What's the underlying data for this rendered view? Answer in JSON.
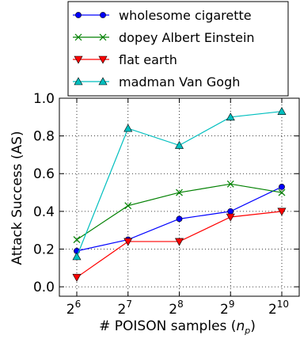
{
  "chart_data": {
    "type": "line",
    "title": "",
    "xlabel": "# POISON samples (",
    "xlabel_var": "n",
    "xlabel_sub": "p",
    "xlabel_close": ")",
    "ylabel": "Attack Success (AS)",
    "x_tick_base": "2",
    "x_exponents": [
      "6",
      "7",
      "8",
      "9",
      "10"
    ],
    "x": [
      64,
      128,
      256,
      512,
      1024
    ],
    "x_scale": "log2",
    "ylim": [
      -0.05,
      1.0
    ],
    "y_ticks": [
      "0.0",
      "0.2",
      "0.4",
      "0.6",
      "0.8",
      "1.0"
    ],
    "grid": true,
    "legend_position": "top",
    "series": [
      {
        "name": "wholesome cigarette",
        "color": "#0000ff",
        "marker": "circle",
        "values": [
          0.19,
          0.25,
          0.36,
          0.4,
          0.53
        ]
      },
      {
        "name": "dopey Albert Einstein",
        "color": "#008000",
        "marker": "x",
        "values": [
          0.25,
          0.43,
          0.5,
          0.545,
          0.5
        ]
      },
      {
        "name": "flat earth",
        "color": "#ff0000",
        "marker": "triangle-down",
        "values": [
          0.05,
          0.24,
          0.24,
          0.37,
          0.4
        ]
      },
      {
        "name": "madman Van Gogh",
        "color": "#00bfbf",
        "marker": "triangle-up",
        "values": [
          0.16,
          0.84,
          0.75,
          0.9,
          0.93
        ]
      }
    ]
  }
}
